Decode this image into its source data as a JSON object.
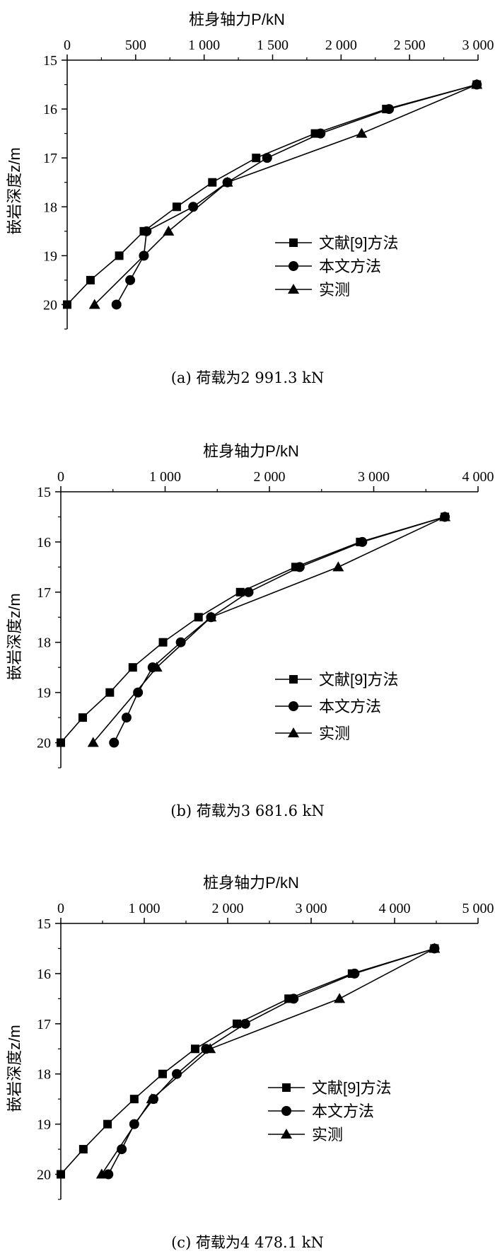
{
  "chart_data": [
    {
      "type": "line",
      "caption": "(a) 荷载为2 991.3 kN",
      "xlabel": "桩身轴力P/kN",
      "ylabel": "嵌岩深度z/m",
      "xlim": [
        0,
        3000
      ],
      "ylim": [
        20.5,
        15
      ],
      "x_ticks": [
        0,
        500,
        1000,
        1500,
        2000,
        2500,
        3000
      ],
      "x_tick_labels": [
        "0",
        "500",
        "1 000",
        "1 500",
        "2 000",
        "2 500",
        "3 000"
      ],
      "y_ticks": [
        15,
        16,
        17,
        18,
        19,
        20
      ],
      "y_tick_labels": [
        "15",
        "16",
        "17",
        "18",
        "19",
        "20"
      ],
      "x_axis_position": "top",
      "legend_position": "right",
      "series": [
        {
          "name": "文献[9]方法",
          "marker": "square",
          "x": [
            2991,
            2330,
            1810,
            1380,
            1060,
            800,
            560,
            380,
            170,
            0
          ],
          "y": [
            15.5,
            16,
            16.5,
            17,
            17.5,
            18,
            18.5,
            19,
            19.5,
            20
          ]
        },
        {
          "name": "本文方法",
          "marker": "circle",
          "x": [
            2991,
            2350,
            1850,
            1460,
            1170,
            920,
            580,
            560,
            460,
            360
          ],
          "y": [
            15.5,
            16,
            16.5,
            17,
            17.5,
            18,
            18.5,
            19,
            19.5,
            20
          ]
        },
        {
          "name": "实测",
          "marker": "triangle",
          "x": [
            2991,
            2150,
            1170,
            740,
            200
          ],
          "y": [
            15.5,
            16.5,
            17.5,
            18.5,
            20
          ]
        }
      ]
    },
    {
      "type": "line",
      "caption": "(b) 荷载为3 681.6 kN",
      "xlabel": "桩身轴力P/kN",
      "ylabel": "嵌岩深度z/m",
      "xlim": [
        0,
        4000
      ],
      "ylim": [
        20.5,
        15
      ],
      "x_ticks": [
        0,
        1000,
        2000,
        3000,
        4000
      ],
      "x_tick_labels": [
        "0",
        "1 000",
        "2 000",
        "3 000",
        "4 000"
      ],
      "y_ticks": [
        15,
        16,
        17,
        18,
        19,
        20
      ],
      "y_tick_labels": [
        "15",
        "16",
        "17",
        "18",
        "19",
        "20"
      ],
      "x_axis_position": "top",
      "legend_position": "right",
      "series": [
        {
          "name": "文献[9]方法",
          "marker": "square",
          "x": [
            3682,
            2870,
            2250,
            1720,
            1320,
            980,
            690,
            470,
            210,
            0
          ],
          "y": [
            15.5,
            16,
            16.5,
            17,
            17.5,
            18,
            18.5,
            19,
            19.5,
            20
          ]
        },
        {
          "name": "本文方法",
          "marker": "circle",
          "x": [
            3682,
            2890,
            2290,
            1800,
            1440,
            1150,
            880,
            740,
            630,
            510
          ],
          "y": [
            15.5,
            16,
            16.5,
            17,
            17.5,
            18,
            18.5,
            19,
            19.5,
            20
          ]
        },
        {
          "name": "实测",
          "marker": "triangle",
          "x": [
            3682,
            2660,
            1440,
            920,
            310
          ],
          "y": [
            15.5,
            16.5,
            17.5,
            18.5,
            20
          ]
        }
      ]
    },
    {
      "type": "line",
      "caption": "(c) 荷载为4 478.1 kN",
      "xlabel": "桩身轴力P/kN",
      "ylabel": "嵌岩深度z/m",
      "xlim": [
        0,
        5000
      ],
      "ylim": [
        20.5,
        15
      ],
      "x_ticks": [
        0,
        1000,
        2000,
        3000,
        4000,
        5000
      ],
      "x_tick_labels": [
        "0",
        "1 000",
        "2 000",
        "3 000",
        "4 000",
        "5 000"
      ],
      "y_ticks": [
        15,
        16,
        17,
        18,
        19,
        20
      ],
      "y_tick_labels": [
        "15",
        "16",
        "17",
        "18",
        "19",
        "20"
      ],
      "x_axis_position": "top",
      "legend_position": "right",
      "series": [
        {
          "name": "文献[9]方法",
          "marker": "square",
          "x": [
            4478,
            3490,
            2730,
            2110,
            1610,
            1220,
            880,
            560,
            270,
            0
          ],
          "y": [
            15.5,
            16,
            16.5,
            17,
            17.5,
            18,
            18.5,
            19,
            19.5,
            20
          ]
        },
        {
          "name": "本文方法",
          "marker": "circle",
          "x": [
            4478,
            3520,
            2790,
            2210,
            1740,
            1390,
            1110,
            880,
            730,
            570
          ],
          "y": [
            15.5,
            16,
            16.5,
            17,
            17.5,
            18,
            18.5,
            19,
            19.5,
            20
          ]
        },
        {
          "name": "实测",
          "marker": "triangle",
          "x": [
            4478,
            3340,
            1790,
            1090,
            490
          ],
          "y": [
            15.5,
            16.5,
            17.5,
            18.5,
            20
          ]
        }
      ]
    }
  ]
}
